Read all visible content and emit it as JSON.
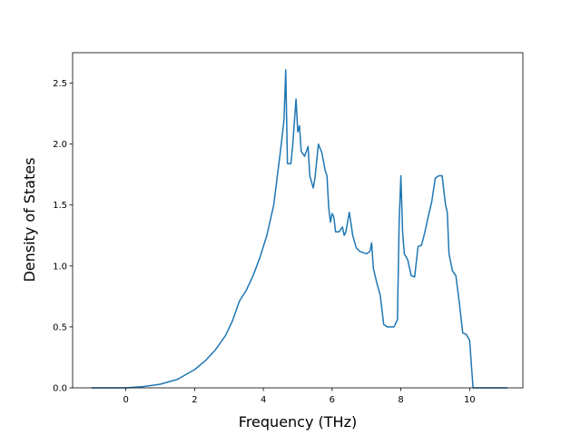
{
  "chart_data": {
    "type": "line",
    "title": "",
    "xlabel": "Frequency (THz)",
    "ylabel": "Density of States",
    "xlim": [
      -1.55,
      11.55
    ],
    "ylim": [
      0.0,
      2.75
    ],
    "xticks": [
      0,
      2,
      4,
      6,
      8,
      10
    ],
    "yticks": [
      0.0,
      0.5,
      1.0,
      1.5,
      2.0,
      2.5
    ],
    "xtick_labels": [
      "0",
      "2",
      "4",
      "6",
      "8",
      "10"
    ],
    "ytick_labels": [
      "0.0",
      "0.5",
      "1.0",
      "1.5",
      "2.0",
      "2.5"
    ],
    "grid": false,
    "legend": "none",
    "series": [
      {
        "color": "#1f77b4",
        "x": [
          -1.0,
          0.0,
          0.5,
          1.0,
          1.5,
          2.0,
          2.3,
          2.6,
          2.9,
          3.1,
          3.3,
          3.5,
          3.7,
          3.9,
          4.1,
          4.3,
          4.5,
          4.6,
          4.65,
          4.7,
          4.8,
          4.85,
          4.95,
          5.0,
          5.05,
          5.1,
          5.2,
          5.3,
          5.35,
          5.45,
          5.5,
          5.6,
          5.7,
          5.8,
          5.85,
          5.9,
          5.95,
          6.0,
          6.05,
          6.1,
          6.2,
          6.3,
          6.35,
          6.4,
          6.5,
          6.6,
          6.7,
          6.8,
          7.0,
          7.1,
          7.15,
          7.2,
          7.3,
          7.4,
          7.5,
          7.6,
          7.7,
          7.8,
          7.9,
          7.95,
          8.0,
          8.05,
          8.1,
          8.2,
          8.3,
          8.4,
          8.5,
          8.6,
          8.7,
          8.8,
          8.9,
          9.0,
          9.1,
          9.2,
          9.3,
          9.35,
          9.4,
          9.5,
          9.6,
          9.7,
          9.8,
          9.9,
          10.0,
          10.1,
          10.2,
          11.1
        ],
        "y": [
          0.0,
          0.0,
          0.01,
          0.03,
          0.07,
          0.15,
          0.22,
          0.31,
          0.43,
          0.55,
          0.71,
          0.8,
          0.92,
          1.07,
          1.25,
          1.5,
          1.95,
          2.2,
          2.61,
          1.84,
          1.84,
          1.98,
          2.37,
          2.1,
          2.15,
          1.94,
          1.9,
          1.98,
          1.74,
          1.64,
          1.72,
          2.0,
          1.93,
          1.78,
          1.74,
          1.48,
          1.36,
          1.43,
          1.4,
          1.28,
          1.28,
          1.32,
          1.25,
          1.28,
          1.44,
          1.25,
          1.15,
          1.12,
          1.1,
          1.12,
          1.19,
          0.98,
          0.86,
          0.76,
          0.52,
          0.5,
          0.5,
          0.5,
          0.56,
          1.36,
          1.74,
          1.28,
          1.1,
          1.05,
          0.92,
          0.91,
          1.16,
          1.17,
          1.28,
          1.41,
          1.53,
          1.72,
          1.74,
          1.74,
          1.5,
          1.44,
          1.1,
          0.96,
          0.92,
          0.7,
          0.45,
          0.44,
          0.39,
          0.0,
          0.0,
          0.0
        ]
      }
    ]
  }
}
